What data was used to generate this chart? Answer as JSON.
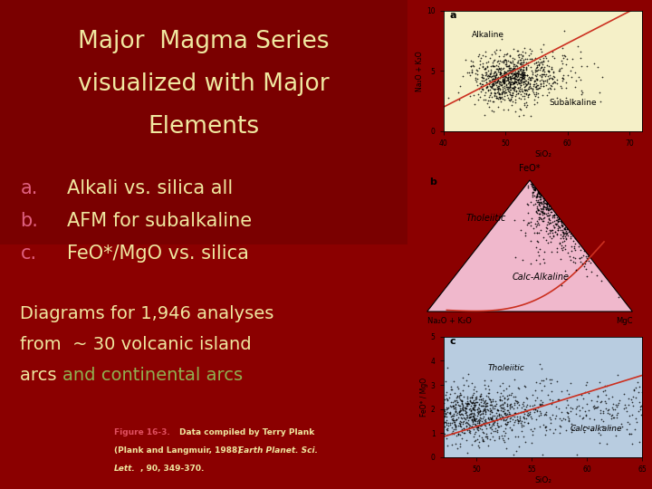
{
  "title_line1": "Major  Magma Series",
  "title_line2": "visualized with Major",
  "title_line3": "Elements",
  "title_bg_color": "#7A0000",
  "left_bg": "#8B0000",
  "right_bg": "#D4C5A0",
  "title_text_color": "#F0E8A0",
  "bullet_color": "#E06080",
  "bullet_text_color": "#F0E8A0",
  "body_text_color": "#F0E8A0",
  "highlight_color": "#90B050",
  "caption_fig_color": "#E05060",
  "caption_text_color": "#F0E8A0",
  "panel_a_bg": "#F5F0C8",
  "panel_b_bg": "#E8DFC0",
  "panel_c_bg": "#B8CCE0",
  "panel_b_tri_color": "#F0B8CC",
  "panel_a_line_color": "#CC3020",
  "panel_b_line_color": "#CC3020",
  "panel_c_line_color": "#CC3020"
}
